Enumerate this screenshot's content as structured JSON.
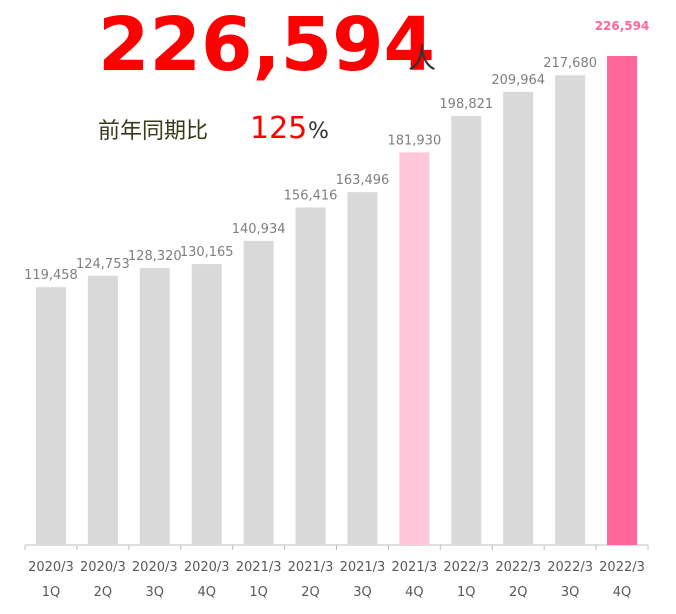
{
  "headline": {
    "value": "226,594",
    "unit": "人"
  },
  "comparison": {
    "label": "前年同期比",
    "value": "125",
    "unit": "%"
  },
  "chart_data": {
    "type": "bar",
    "categories": [
      [
        "2020/3",
        "1Q"
      ],
      [
        "2020/3",
        "2Q"
      ],
      [
        "2020/3",
        "3Q"
      ],
      [
        "2020/3",
        "4Q"
      ],
      [
        "2021/3",
        "1Q"
      ],
      [
        "2021/3",
        "2Q"
      ],
      [
        "2021/3",
        "3Q"
      ],
      [
        "2021/3",
        "4Q"
      ],
      [
        "2022/3",
        "1Q"
      ],
      [
        "2022/3",
        "2Q"
      ],
      [
        "2022/3",
        "3Q"
      ],
      [
        "2022/3",
        "4Q"
      ]
    ],
    "values": [
      119458,
      124753,
      128320,
      130165,
      140934,
      156416,
      163496,
      181930,
      198821,
      209964,
      217680,
      226594
    ],
    "value_labels": [
      "119,458",
      "124,753",
      "128,320",
      "130,165",
      "140,934",
      "156,416",
      "163,496",
      "181,930",
      "198,821",
      "209,964",
      "217,680",
      "226,594"
    ],
    "colors": [
      "#d9d9d9",
      "#d9d9d9",
      "#d9d9d9",
      "#d9d9d9",
      "#d9d9d9",
      "#d9d9d9",
      "#d9d9d9",
      "#ffc7d9",
      "#d9d9d9",
      "#d9d9d9",
      "#d9d9d9",
      "#ff6699"
    ]
  }
}
